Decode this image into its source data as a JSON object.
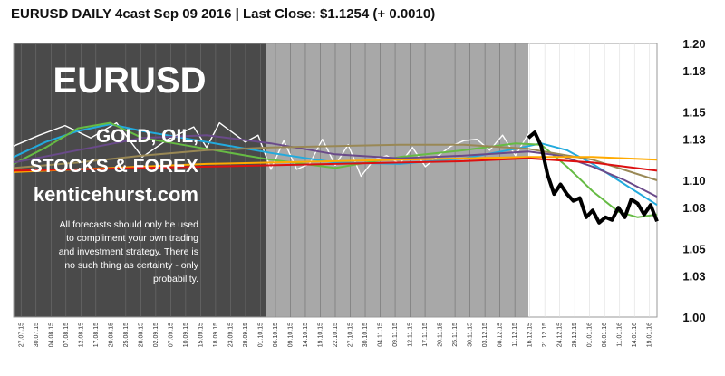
{
  "chart_data": {
    "type": "line",
    "title": "EURUSD DAILY 4cast  Sep 09 2016 | Last Close: $1.1254 (+ 0.0010)",
    "ylim": [
      1.0,
      1.2
    ],
    "y_ticks": [
      "1.20",
      "1.18",
      "1.15",
      "1.13",
      "1.10",
      "1.08",
      "1.05",
      "1.03",
      "1.00"
    ],
    "x_tick_labels": [
      "27.07.15",
      "30.07.15",
      "04.08.15",
      "07.08.15",
      "12.08.15",
      "17.08.15",
      "20.08.15",
      "25.08.15",
      "28.08.15",
      "02.09.15",
      "07.09.15",
      "10.09.15",
      "15.09.15",
      "18.09.15",
      "23.09.15",
      "28.09.15",
      "01.10.15",
      "06.10.15",
      "09.10.15",
      "14.10.15",
      "19.10.15",
      "22.10.15",
      "27.10.15",
      "30.10.15",
      "04.11.15",
      "09.11.15",
      "12.11.15",
      "17.11.15",
      "20.11.15",
      "25.11.15",
      "30.11.15",
      "03.12.15",
      "08.12.15",
      "11.12.15",
      "16.12.15",
      "21.12.15",
      "24.12.15",
      "29.12.15",
      "01.01.16",
      "06.01.16",
      "11.01.16",
      "14.01.16",
      "19.01.16"
    ],
    "grid": true,
    "shaded_regions": [
      {
        "name": "history-dark",
        "x_range": [
          0,
          0.392
        ]
      },
      {
        "name": "history-light",
        "x_range": [
          0.392,
          0.8
        ]
      }
    ],
    "series": [
      {
        "name": "",
        "color": "#ffffff",
        "x": [
          0,
          0.04,
          0.08,
          0.12,
          0.16,
          0.2,
          0.24,
          0.28,
          0.3,
          0.32,
          0.34,
          0.36,
          0.38,
          0.4,
          0.42,
          0.44,
          0.46,
          0.48,
          0.5,
          0.52,
          0.54,
          0.56,
          0.58,
          0.6,
          0.62,
          0.64,
          0.66,
          0.68,
          0.7,
          0.72,
          0.74,
          0.76,
          0.78,
          0.8
        ],
        "values": [
          1.125,
          1.133,
          1.14,
          1.131,
          1.142,
          1.117,
          1.13,
          1.139,
          1.124,
          1.142,
          1.135,
          1.128,
          1.133,
          1.108,
          1.129,
          1.108,
          1.112,
          1.13,
          1.111,
          1.126,
          1.103,
          1.115,
          1.118,
          1.112,
          1.124,
          1.11,
          1.118,
          1.125,
          1.129,
          1.13,
          1.122,
          1.133,
          1.118,
          1.134
        ]
      },
      {
        "name": "",
        "color": "#22aadd",
        "x": [
          0,
          0.05,
          0.1,
          0.15,
          0.2,
          0.3,
          0.4,
          0.5,
          0.6,
          0.7,
          0.78,
          0.82,
          0.86,
          0.9,
          0.94,
          1.0
        ],
        "values": [
          1.117,
          1.128,
          1.136,
          1.141,
          1.136,
          1.128,
          1.12,
          1.113,
          1.112,
          1.116,
          1.123,
          1.127,
          1.122,
          1.112,
          1.1,
          1.082
        ]
      },
      {
        "name": "",
        "color": "#66bb44",
        "x": [
          0,
          0.05,
          0.1,
          0.15,
          0.2,
          0.3,
          0.4,
          0.5,
          0.6,
          0.7,
          0.78,
          0.82,
          0.86,
          0.9,
          0.94,
          0.97,
          1.0
        ],
        "values": [
          1.112,
          1.124,
          1.138,
          1.142,
          1.131,
          1.123,
          1.115,
          1.109,
          1.117,
          1.122,
          1.127,
          1.126,
          1.11,
          1.092,
          1.077,
          1.073,
          1.075
        ]
      },
      {
        "name": "",
        "color": "#6a4a8a",
        "x": [
          0,
          0.1,
          0.2,
          0.3,
          0.4,
          0.5,
          0.6,
          0.7,
          0.8,
          0.85,
          0.9,
          0.95,
          1.0
        ],
        "values": [
          1.113,
          1.122,
          1.131,
          1.133,
          1.127,
          1.119,
          1.116,
          1.118,
          1.121,
          1.118,
          1.11,
          1.1,
          1.088
        ]
      },
      {
        "name": "",
        "color": "#998855",
        "x": [
          0,
          0.1,
          0.2,
          0.3,
          0.4,
          0.5,
          0.6,
          0.7,
          0.8,
          0.9,
          1.0
        ],
        "values": [
          1.109,
          1.113,
          1.118,
          1.122,
          1.124,
          1.125,
          1.126,
          1.126,
          1.123,
          1.115,
          1.1
        ]
      },
      {
        "name": "",
        "color": "#ffaa00",
        "x": [
          0,
          0.1,
          0.2,
          0.3,
          0.4,
          0.5,
          0.6,
          0.7,
          0.8,
          0.9,
          1.0
        ],
        "values": [
          1.106,
          1.108,
          1.11,
          1.112,
          1.113,
          1.114,
          1.115,
          1.116,
          1.117,
          1.117,
          1.115
        ]
      },
      {
        "name": "",
        "color": "#dd1111",
        "x": [
          0,
          0.1,
          0.2,
          0.3,
          0.4,
          0.5,
          0.6,
          0.7,
          0.8,
          0.9,
          1.0
        ],
        "values": [
          1.107,
          1.108,
          1.109,
          1.11,
          1.111,
          1.112,
          1.113,
          1.114,
          1.116,
          1.113,
          1.107
        ]
      },
      {
        "name": "",
        "color": "#000000",
        "x": [
          0.8,
          0.81,
          0.82,
          0.83,
          0.84,
          0.85,
          0.86,
          0.87,
          0.88,
          0.89,
          0.9,
          0.91,
          0.92,
          0.93,
          0.94,
          0.95,
          0.96,
          0.97,
          0.98,
          0.99,
          1.0
        ],
        "values": [
          1.131,
          1.135,
          1.125,
          1.104,
          1.09,
          1.097,
          1.09,
          1.085,
          1.087,
          1.073,
          1.078,
          1.069,
          1.073,
          1.071,
          1.08,
          1.073,
          1.086,
          1.083,
          1.075,
          1.082,
          1.07
        ]
      }
    ]
  },
  "branding": {
    "ticker": "EURUSD",
    "line1": "GOLD, OIL,",
    "line2": "STOCKS & FOREX",
    "url": "kenticehurst.com",
    "disclaimer": [
      "All forecasts should only be used",
      "to compliment your own trading",
      "and investment strategy. There is",
      "no such thing as certainty - only",
      "probability."
    ]
  },
  "colors": {
    "dark_region": "#4a4a4a",
    "light_region": "#a8a8a8",
    "grid": "#888888"
  }
}
